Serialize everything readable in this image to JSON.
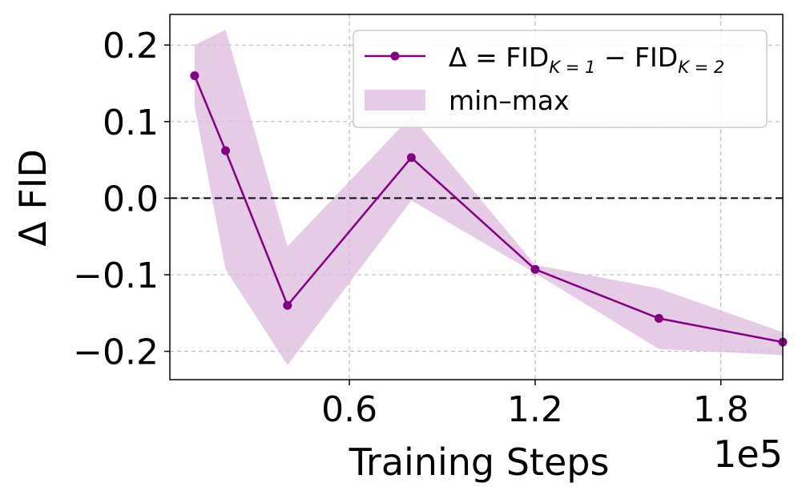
{
  "chart_data": {
    "type": "line",
    "xlabel": "Training Steps",
    "ylabel": "Δ FID",
    "x_offset_text": "1e5",
    "x_scale": 100000,
    "xlim": [
      0.02,
      2.0
    ],
    "ylim": [
      -0.237,
      0.24
    ],
    "xticks": [
      0.6,
      1.2,
      1.8
    ],
    "xtick_labels": [
      "0.6",
      "1.2",
      "1.8"
    ],
    "yticks": [
      0.2,
      0.1,
      0.0,
      -0.1,
      -0.2
    ],
    "ytick_labels": [
      "0.2",
      "0.1",
      "0.0",
      "−0.1",
      "−0.2"
    ],
    "grid": true,
    "reference_line": {
      "y": 0.0,
      "style": "dashed",
      "color": "#000000"
    },
    "series": [
      {
        "name": "Δ = FID_{K=1} − FID_{K=2}",
        "color": "#800080",
        "marker": "circle",
        "x": [
          0.1,
          0.2,
          0.4,
          0.8,
          1.2,
          1.6,
          2.0
        ],
        "y": [
          0.16,
          0.062,
          -0.14,
          0.053,
          -0.093,
          -0.157,
          -0.188
        ]
      }
    ],
    "band": {
      "name": "min–max",
      "color": "#DDBADD",
      "x": [
        0.1,
        0.2,
        0.4,
        0.8,
        1.2,
        1.6,
        2.0
      ],
      "upper": [
        0.2,
        0.22,
        -0.063,
        0.107,
        -0.087,
        -0.118,
        -0.175
      ],
      "lower": [
        0.12,
        -0.093,
        -0.218,
        -0.003,
        -0.098,
        -0.197,
        -0.205
      ]
    },
    "legend": {
      "placement": "top-right",
      "line_label": {
        "main": "Δ = FID",
        "sub1": "K = 1",
        "mid": " − FID",
        "sub2": "K = 2"
      },
      "band_label": "min–max"
    }
  }
}
